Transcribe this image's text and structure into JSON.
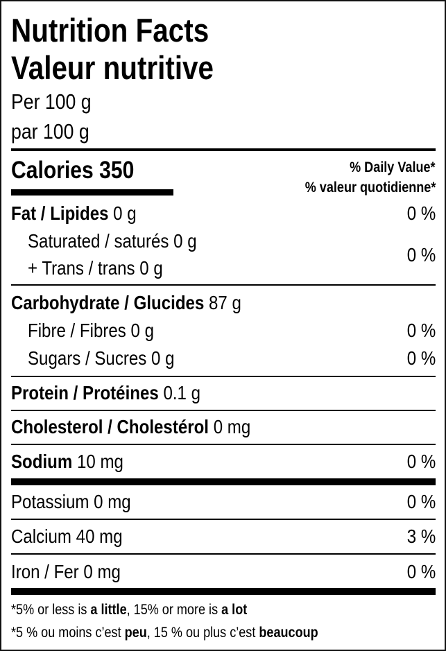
{
  "header": {
    "title_en": "Nutrition Facts",
    "title_fr": "Valeur nutritive",
    "serving_en": "Per 100 g",
    "serving_fr": "par 100 g"
  },
  "calories": {
    "label": "Calories",
    "value": "350"
  },
  "daily_value": {
    "en": "% Daily Value*",
    "fr": "% valeur quotidienne*"
  },
  "nutrients": {
    "fat": {
      "label": "Fat / Lipides",
      "amount": "0 g",
      "dv": "0 %"
    },
    "saturated": {
      "label": "Saturated / saturés",
      "amount": "0 g"
    },
    "trans": {
      "label": "+ Trans / trans",
      "amount": "0 g"
    },
    "sat_trans_dv": "0 %",
    "carbohydrate": {
      "label": "Carbohydrate / Glucides",
      "amount": "87 g"
    },
    "fibre": {
      "label": "Fibre / Fibres",
      "amount": "0 g",
      "dv": "0 %"
    },
    "sugars": {
      "label": "Sugars / Sucres",
      "amount": "0 g",
      "dv": "0 %"
    },
    "protein": {
      "label": "Protein / Protéines",
      "amount": "0.1 g"
    },
    "cholesterol": {
      "label": "Cholesterol / Cholestérol",
      "amount": "0 mg"
    },
    "sodium": {
      "label": "Sodium",
      "amount": "10 mg",
      "dv": "0 %"
    },
    "potassium": {
      "label": "Potassium",
      "amount": "0 mg",
      "dv": "0 %"
    },
    "calcium": {
      "label": "Calcium",
      "amount": "40 mg",
      "dv": "3 %"
    },
    "iron": {
      "label": "Iron / Fer",
      "amount": "0 mg",
      "dv": "0 %"
    }
  },
  "footnote": {
    "en": {
      "p1": "*5% or less is ",
      "b1": "a little",
      "p2": ", 15% or more is ",
      "b2": "a lot"
    },
    "fr": {
      "p1": "*5 % ou moins c’est ",
      "b1": "peu",
      "p2": ", 15 % ou plus c’est ",
      "b2": "beaucoup"
    }
  }
}
